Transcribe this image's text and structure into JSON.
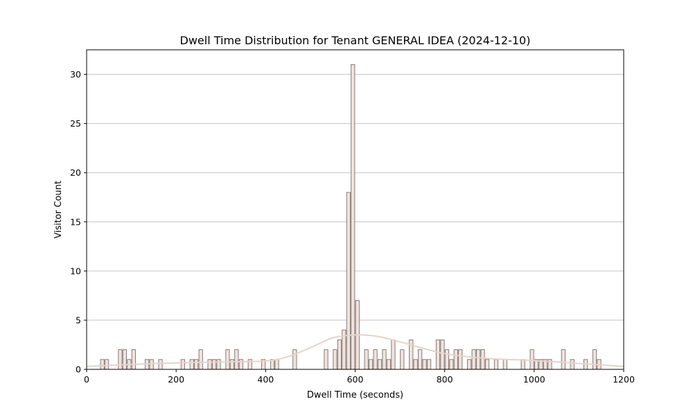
{
  "chart_data": {
    "type": "bar",
    "title": "Dwell Time Distribution for Tenant GENERAL IDEA (2024-12-10)",
    "xlabel": "Dwell Time (seconds)",
    "ylabel": "Visitor Count",
    "xlim": [
      0,
      1200
    ],
    "ylim": [
      0,
      32.5
    ],
    "xticks": [
      0,
      200,
      400,
      600,
      800,
      1000,
      1200
    ],
    "yticks": [
      0,
      5,
      10,
      15,
      20,
      25,
      30
    ],
    "grid": "horizontal",
    "bin_width": 10,
    "bins": [
      {
        "x": 30,
        "count": 1
      },
      {
        "x": 40,
        "count": 1
      },
      {
        "x": 70,
        "count": 2
      },
      {
        "x": 80,
        "count": 2
      },
      {
        "x": 90,
        "count": 1
      },
      {
        "x": 100,
        "count": 2
      },
      {
        "x": 130,
        "count": 1
      },
      {
        "x": 140,
        "count": 1
      },
      {
        "x": 160,
        "count": 1
      },
      {
        "x": 210,
        "count": 1
      },
      {
        "x": 230,
        "count": 1
      },
      {
        "x": 240,
        "count": 1
      },
      {
        "x": 250,
        "count": 2
      },
      {
        "x": 270,
        "count": 1
      },
      {
        "x": 280,
        "count": 1
      },
      {
        "x": 290,
        "count": 1
      },
      {
        "x": 310,
        "count": 2
      },
      {
        "x": 320,
        "count": 1
      },
      {
        "x": 330,
        "count": 2
      },
      {
        "x": 340,
        "count": 1
      },
      {
        "x": 360,
        "count": 1
      },
      {
        "x": 390,
        "count": 1
      },
      {
        "x": 410,
        "count": 1
      },
      {
        "x": 420,
        "count": 1
      },
      {
        "x": 460,
        "count": 2
      },
      {
        "x": 530,
        "count": 2
      },
      {
        "x": 550,
        "count": 2
      },
      {
        "x": 560,
        "count": 3
      },
      {
        "x": 570,
        "count": 4
      },
      {
        "x": 580,
        "count": 18
      },
      {
        "x": 590,
        "count": 31
      },
      {
        "x": 600,
        "count": 7
      },
      {
        "x": 620,
        "count": 2
      },
      {
        "x": 630,
        "count": 1
      },
      {
        "x": 640,
        "count": 2
      },
      {
        "x": 650,
        "count": 1
      },
      {
        "x": 660,
        "count": 2
      },
      {
        "x": 670,
        "count": 1
      },
      {
        "x": 680,
        "count": 3
      },
      {
        "x": 700,
        "count": 2
      },
      {
        "x": 720,
        "count": 3
      },
      {
        "x": 730,
        "count": 1
      },
      {
        "x": 740,
        "count": 2
      },
      {
        "x": 750,
        "count": 1
      },
      {
        "x": 760,
        "count": 1
      },
      {
        "x": 780,
        "count": 3
      },
      {
        "x": 790,
        "count": 3
      },
      {
        "x": 800,
        "count": 2
      },
      {
        "x": 810,
        "count": 1
      },
      {
        "x": 820,
        "count": 2
      },
      {
        "x": 830,
        "count": 2
      },
      {
        "x": 850,
        "count": 1
      },
      {
        "x": 860,
        "count": 2
      },
      {
        "x": 870,
        "count": 2
      },
      {
        "x": 880,
        "count": 2
      },
      {
        "x": 890,
        "count": 1
      },
      {
        "x": 910,
        "count": 1
      },
      {
        "x": 930,
        "count": 1
      },
      {
        "x": 970,
        "count": 1
      },
      {
        "x": 990,
        "count": 2
      },
      {
        "x": 1000,
        "count": 1
      },
      {
        "x": 1010,
        "count": 1
      },
      {
        "x": 1020,
        "count": 1
      },
      {
        "x": 1030,
        "count": 1
      },
      {
        "x": 1060,
        "count": 2
      },
      {
        "x": 1080,
        "count": 1
      },
      {
        "x": 1110,
        "count": 1
      },
      {
        "x": 1130,
        "count": 2
      },
      {
        "x": 1140,
        "count": 1
      }
    ],
    "kde": {
      "x": [
        0,
        100,
        200,
        300,
        400,
        450,
        500,
        550,
        600,
        650,
        700,
        800,
        900,
        1000,
        1100,
        1200
      ],
      "y": [
        0.3,
        0.5,
        0.65,
        0.75,
        0.85,
        1.3,
        2.2,
        3.2,
        3.5,
        3.35,
        2.8,
        1.6,
        1.1,
        0.9,
        0.6,
        0.3
      ]
    },
    "colors": {
      "bar_fill": "#f0e3de",
      "bar_edge": "#7a6f6c",
      "kde_line": "#e5d4cb",
      "grid": "#c4c4c4",
      "axis": "#000000"
    }
  }
}
